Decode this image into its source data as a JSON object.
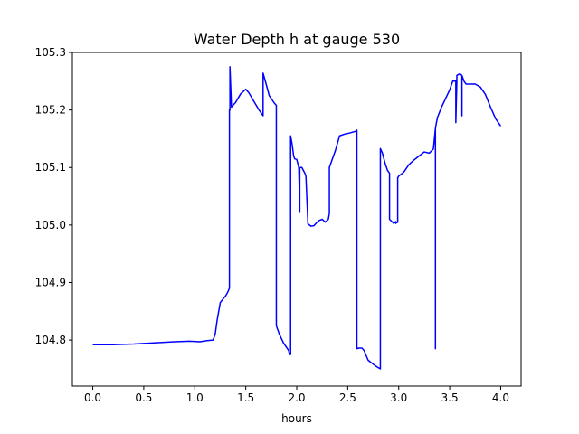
{
  "chart_data": {
    "type": "line",
    "title": "Water Depth h at gauge 530",
    "xlabel": "hours",
    "ylabel": "",
    "xlim": [
      -0.2,
      4.2
    ],
    "ylim": [
      104.72,
      105.3
    ],
    "xticks": [
      0.0,
      0.5,
      1.0,
      1.5,
      2.0,
      2.5,
      3.0,
      3.5,
      4.0
    ],
    "xtick_labels": [
      "0.0",
      "0.5",
      "1.0",
      "1.5",
      "2.0",
      "2.5",
      "3.0",
      "3.5",
      "4.0"
    ],
    "yticks": [
      104.8,
      104.9,
      105.0,
      105.1,
      105.2,
      105.3
    ],
    "ytick_labels": [
      "104.8",
      "104.9",
      "105.0",
      "105.1",
      "105.2",
      "105.3"
    ],
    "grid": false,
    "line_color": "#0000ff",
    "series": [
      {
        "x": [
          0.0,
          0.2,
          0.4,
          0.6,
          0.8,
          0.95,
          1.05,
          1.12,
          1.18,
          1.2,
          1.22,
          1.25,
          1.28,
          1.3,
          1.32,
          1.34,
          1.34,
          1.345,
          1.345,
          1.36,
          1.4,
          1.45,
          1.5,
          1.53,
          1.58,
          1.63,
          1.67,
          1.67,
          1.7,
          1.73,
          1.78,
          1.8,
          1.8,
          1.83,
          1.87,
          1.92,
          1.93,
          1.94,
          1.94,
          1.955,
          1.97,
          1.98,
          2.0,
          2.02,
          2.03,
          2.03,
          2.05,
          2.08,
          2.09,
          2.11,
          2.14,
          2.17,
          2.2,
          2.22,
          2.25,
          2.28,
          2.31,
          2.32,
          2.32,
          2.34,
          2.38,
          2.42,
          2.47,
          2.52,
          2.56,
          2.58,
          2.59,
          2.59,
          2.61,
          2.64,
          2.66,
          2.7,
          2.75,
          2.79,
          2.82,
          2.82,
          2.84,
          2.87,
          2.89,
          2.91,
          2.91,
          2.95,
          2.97,
          2.97,
          2.99,
          2.99,
          3.0,
          3.05,
          3.1,
          3.15,
          3.2,
          3.25,
          3.3,
          3.34,
          3.36,
          3.36,
          3.36,
          3.37,
          3.38,
          3.42,
          3.46,
          3.5,
          3.53,
          3.56,
          3.56,
          3.57,
          3.57,
          3.59,
          3.6,
          3.62,
          3.62,
          3.62,
          3.64,
          3.66,
          3.7,
          3.75,
          3.8,
          3.85,
          3.9,
          3.95,
          4.0
        ],
        "y": [
          104.792,
          104.792,
          104.793,
          104.795,
          104.797,
          104.798,
          104.797,
          104.799,
          104.8,
          104.81,
          104.835,
          104.865,
          104.872,
          104.876,
          104.882,
          104.89,
          105.2,
          105.2,
          105.275,
          105.205,
          105.213,
          105.228,
          105.236,
          105.23,
          105.215,
          105.2,
          105.19,
          105.264,
          105.245,
          105.225,
          105.212,
          105.208,
          104.825,
          104.81,
          104.795,
          104.782,
          104.775,
          104.775,
          105.155,
          105.14,
          105.12,
          105.115,
          105.114,
          105.1,
          105.022,
          105.1,
          105.1,
          105.09,
          105.085,
          105.002,
          104.998,
          104.999,
          105.005,
          105.008,
          105.01,
          105.005,
          105.01,
          105.02,
          105.1,
          105.11,
          105.13,
          105.155,
          105.158,
          105.16,
          105.162,
          105.163,
          105.165,
          104.785,
          104.786,
          104.786,
          104.782,
          104.765,
          104.758,
          104.753,
          104.75,
          105.133,
          105.125,
          105.105,
          105.095,
          105.09,
          105.01,
          105.003,
          105.006,
          105.003,
          105.005,
          105.082,
          105.085,
          105.092,
          105.105,
          105.113,
          105.12,
          105.127,
          105.125,
          105.132,
          105.168,
          104.785,
          105.168,
          105.178,
          105.187,
          105.205,
          105.22,
          105.235,
          105.25,
          105.25,
          105.178,
          105.25,
          105.26,
          105.262,
          105.263,
          105.26,
          105.19,
          105.26,
          105.25,
          105.245,
          105.245,
          105.245,
          105.24,
          105.227,
          105.205,
          105.185,
          105.172
        ]
      }
    ]
  }
}
